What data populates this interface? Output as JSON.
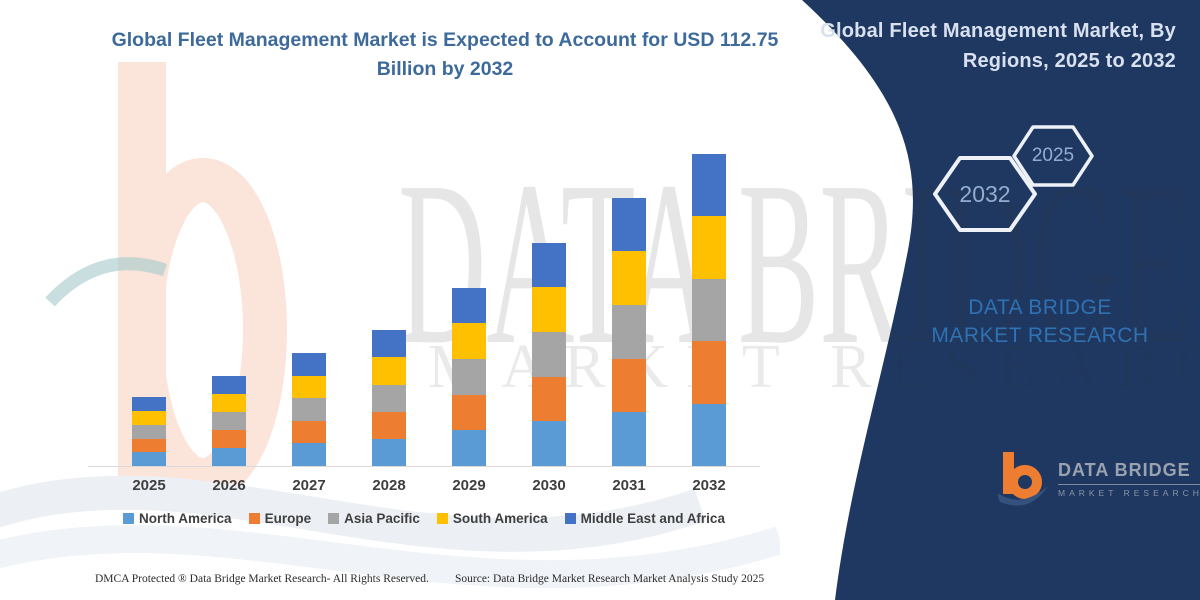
{
  "chart_data": {
    "type": "bar",
    "stacked": true,
    "title": "Global Fleet Management Market is Expected to Account for USD 112.75 Billion by 2032",
    "unit": "USD Billion",
    "xlabel": "",
    "ylabel": "",
    "ylim": [
      0,
      120
    ],
    "grid": false,
    "y_axis_visible": false,
    "legend_position": "bottom",
    "categories": [
      "2025",
      "2026",
      "2027",
      "2028",
      "2029",
      "2030",
      "2031",
      "2032"
    ],
    "series": [
      {
        "name": "North America",
        "color": "#5B9BD5",
        "values": [
          4.95,
          6.47,
          8.13,
          9.8,
          12.89,
          16.14,
          19.4,
          22.55
        ]
      },
      {
        "name": "Europe",
        "color": "#ED7D31",
        "values": [
          4.95,
          6.47,
          8.13,
          9.8,
          12.89,
          16.14,
          19.4,
          22.55
        ]
      },
      {
        "name": "Asia Pacific",
        "color": "#A5A5A5",
        "values": [
          4.95,
          6.47,
          8.13,
          9.8,
          12.89,
          16.14,
          19.4,
          22.55
        ]
      },
      {
        "name": "South America",
        "color": "#FFC000",
        "values": [
          4.95,
          6.47,
          8.13,
          9.8,
          12.89,
          16.14,
          19.4,
          22.55
        ]
      },
      {
        "name": "Middle East and Africa",
        "color": "#4472C4",
        "values": [
          4.95,
          6.47,
          8.13,
          9.8,
          12.89,
          16.14,
          19.4,
          22.55
        ]
      }
    ],
    "totals": [
      24.75,
      32.35,
      40.65,
      49.0,
      64.45,
      80.7,
      97.0,
      112.75
    ]
  },
  "side_panel": {
    "title": "Global Fleet Management Market, By Regions, 2025 to 2032",
    "background_color": "#1F3862",
    "hexagon_labels": [
      "2032",
      "2025"
    ],
    "brand_text": "DATA BRIDGE MARKET RESEARCH",
    "logo": {
      "name": "DATA BRIDGE",
      "subtext": "MARKET RESEARCH"
    }
  },
  "watermark": {
    "row1": "DATA BRIDGE",
    "row2": "MARKET RESEARCH"
  },
  "footer": {
    "dmca": "DMCA Protected ® Data Bridge Market Research-  All Rights Reserved.",
    "source": "Source: Data Bridge Market Research  Market Analysis Study 2025"
  }
}
